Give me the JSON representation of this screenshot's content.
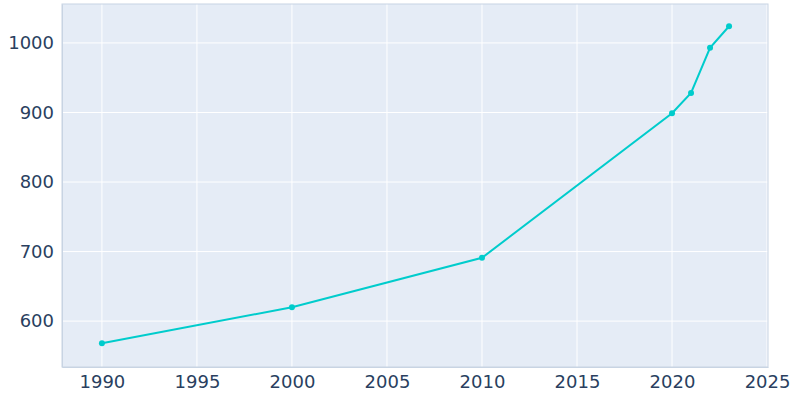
{
  "chart_data": {
    "type": "line",
    "x": [
      1990,
      2000,
      2010,
      2020,
      2021,
      2022,
      2023
    ],
    "values": [
      568,
      620,
      691,
      899,
      928,
      993,
      1024
    ],
    "color": "#00cccc",
    "xlim": [
      1987.9,
      2025.05
    ],
    "xticks": [
      1990,
      1995,
      2000,
      2005,
      2010,
      2015,
      2020,
      2025
    ],
    "ylim": [
      534,
      1056
    ],
    "yticks": [
      600,
      700,
      800,
      900,
      1000
    ],
    "grid": true,
    "marker": "circle"
  }
}
